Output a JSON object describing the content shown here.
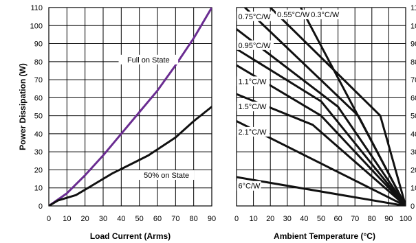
{
  "chart_data": [
    {
      "type": "line",
      "xlabel": "Load Current (Arms)",
      "ylabel": "Power Dissipation (W)",
      "xlim": [
        0,
        90
      ],
      "ylim": [
        0,
        110
      ],
      "x_ticks": [
        "0",
        "10",
        "20",
        "30",
        "40",
        "50",
        "60",
        "70",
        "80",
        "90"
      ],
      "y_ticks": [
        "0",
        "10",
        "20",
        "30",
        "40",
        "50",
        "60",
        "70",
        "80",
        "90",
        "100",
        "110"
      ],
      "grid": true,
      "series": [
        {
          "name": "Full on State",
          "color": "#6a2c91",
          "points": [
            [
              0,
              0
            ],
            [
              10,
              7
            ],
            [
              20,
              17
            ],
            [
              30,
              28
            ],
            [
              40,
              40
            ],
            [
              50,
              52
            ],
            [
              60,
              64
            ],
            [
              70,
              78
            ],
            [
              80,
              93
            ],
            [
              90,
              110
            ]
          ]
        },
        {
          "name": "50% on State",
          "color": "#111111",
          "points": [
            [
              0,
              0
            ],
            [
              5,
              3
            ],
            [
              15,
              6
            ],
            [
              25,
              12
            ],
            [
              35,
              18
            ],
            [
              45,
              23
            ],
            [
              55,
              28
            ],
            [
              70,
              38
            ],
            [
              80,
              47
            ],
            [
              90,
              55
            ]
          ]
        }
      ]
    },
    {
      "type": "line",
      "xlabel": "Ambient Temperature (°C)",
      "xlim": [
        0,
        100
      ],
      "ylim": [
        0,
        110
      ],
      "x_ticks": [
        "0",
        "10",
        "20",
        "30",
        "40",
        "50",
        "60",
        "70",
        "80",
        "90",
        "100"
      ],
      "grid": true,
      "series": [
        {
          "name": "6°C/W",
          "color": "#111111",
          "points": [
            [
              0,
              16
            ],
            [
              100,
              0
            ]
          ]
        },
        {
          "name": "2.1°C/W",
          "color": "#111111",
          "points": [
            [
              0,
              47
            ],
            [
              100,
              0
            ]
          ]
        },
        {
          "name": "1.5°C/W",
          "color": "#111111",
          "points": [
            [
              0,
              62
            ],
            [
              45,
              45
            ],
            [
              100,
              0
            ]
          ]
        },
        {
          "name": "1.1°C/W",
          "color": "#111111",
          "points": [
            [
              0,
              78
            ],
            [
              50,
              50
            ],
            [
              100,
              0
            ]
          ]
        },
        {
          "name": "",
          "color": "#111111",
          "points": [
            [
              0,
              87
            ],
            [
              50,
              58
            ],
            [
              100,
              0
            ]
          ]
        },
        {
          "name": "0.95°C/W",
          "color": "#111111",
          "points": [
            [
              0,
              98
            ],
            [
              60,
              55
            ],
            [
              100,
              0
            ]
          ]
        },
        {
          "name": "0.75°C/W",
          "color": "#111111",
          "points": [
            [
              5,
              110
            ],
            [
              72,
              50
            ],
            [
              100,
              0
            ]
          ]
        },
        {
          "name": "0.55°C/W",
          "color": "#111111",
          "points": [
            [
              20,
              110
            ],
            [
              85,
              50
            ],
            [
              100,
              0
            ]
          ]
        },
        {
          "name": "0.3°C/W",
          "color": "#111111",
          "points": [
            [
              38,
              110
            ],
            [
              100,
              0
            ]
          ]
        }
      ],
      "annotations": [
        "0.75°C/W",
        "0.55°C/W",
        "0.3°C/W",
        "0.95°C/W",
        "1.1°C/W",
        "1.5°C/W",
        "2.1°C/W",
        "6°C/W"
      ]
    }
  ]
}
